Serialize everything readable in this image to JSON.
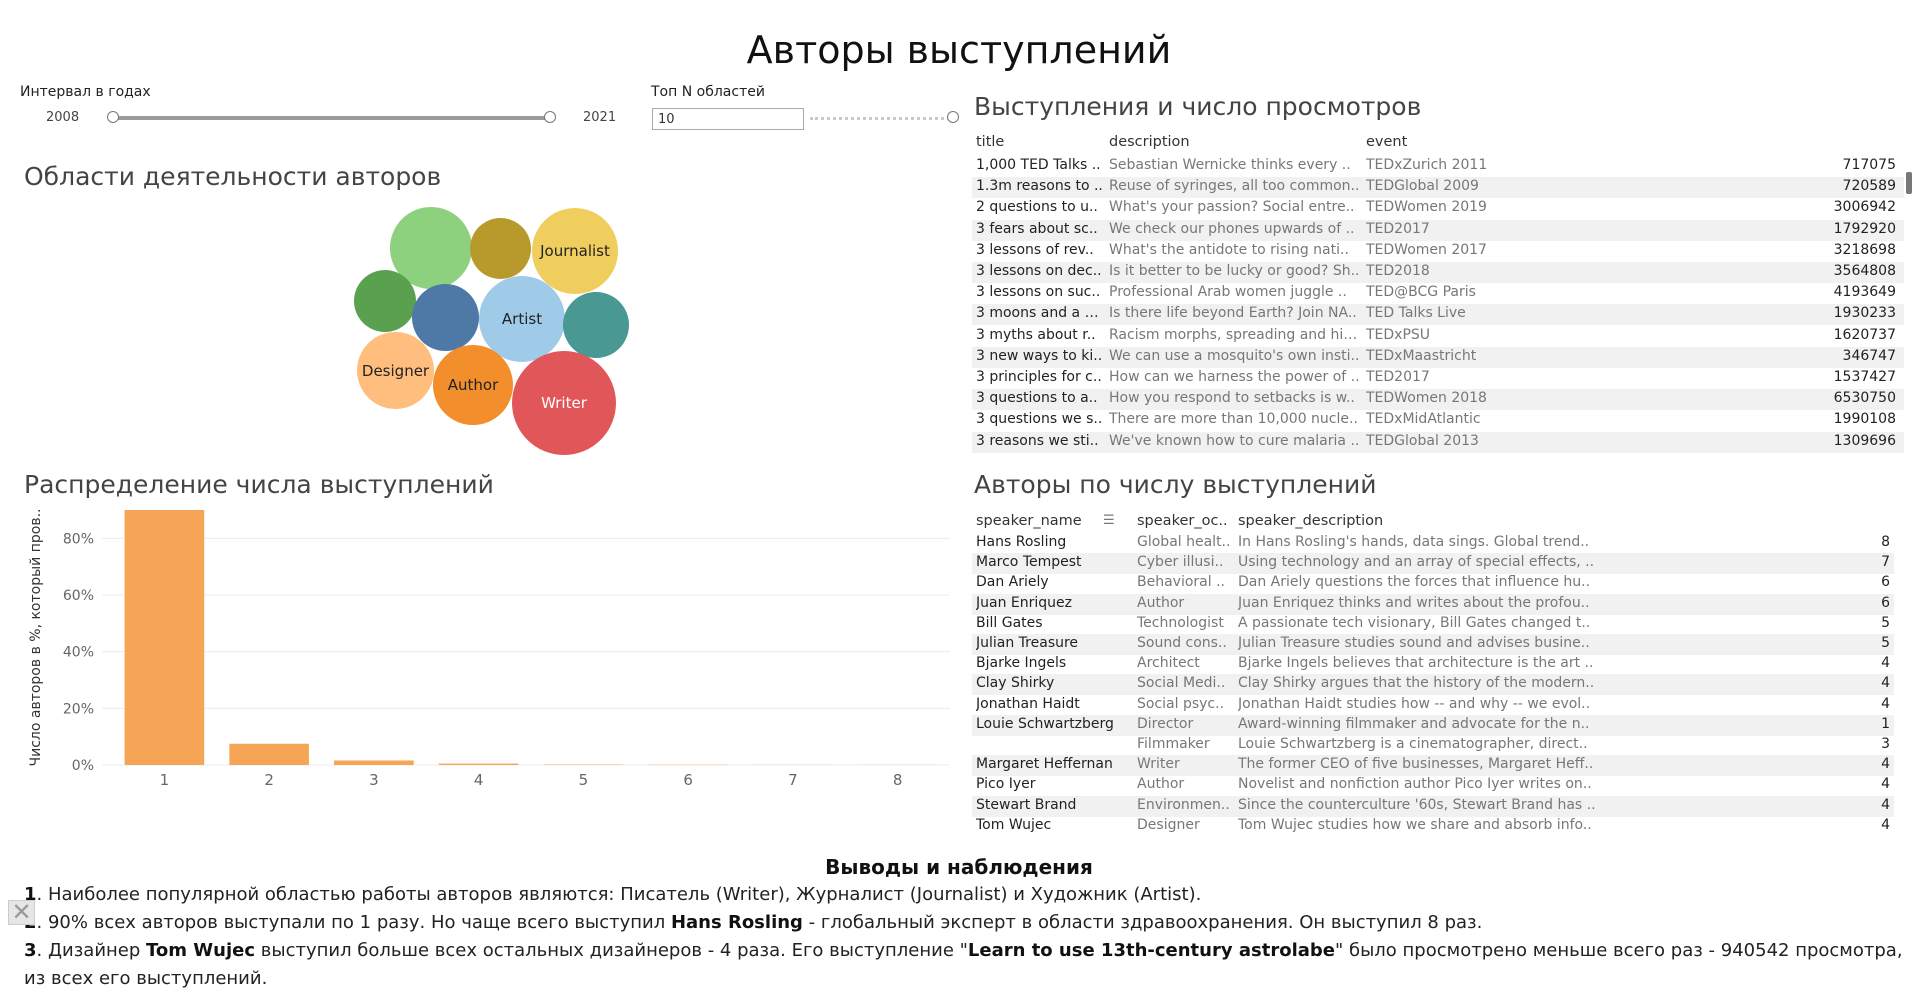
{
  "title": "Авторы выступлений",
  "controls": {
    "interval_label": "Интервал в годах",
    "year_from": "2008",
    "year_to": "2021",
    "topn_label": "Топ N областей",
    "topn_value": "10"
  },
  "bubbles": {
    "title": "Области деятельности авторов",
    "items": [
      {
        "label": "",
        "color": "#8dd17e"
      },
      {
        "label": "",
        "color": "#b89a2c"
      },
      {
        "label": "Journalist",
        "color": "#f0ce5e"
      },
      {
        "label": "",
        "color": "#59a14f"
      },
      {
        "label": "",
        "color": "#4e79a7"
      },
      {
        "label": "Artist",
        "color": "#a0cbe8"
      },
      {
        "label": "",
        "color": "#499894"
      },
      {
        "label": "Designer",
        "color": "#ffbe7d"
      },
      {
        "label": "Author",
        "color": "#f28e2b"
      },
      {
        "label": "Writer",
        "color": "#e15759"
      }
    ]
  },
  "talks": {
    "title": "Выступления и число просмотров",
    "headers": {
      "title": "title",
      "description": "description",
      "event": "event"
    },
    "rows": [
      {
        "title": "1,000 TED Talks ..",
        "description": "Sebastian Wernicke thinks every ..",
        "event": "TEDxZurich 2011",
        "views": "717075"
      },
      {
        "title": "1.3m reasons to ..",
        "description": "Reuse of syringes, all too common..",
        "event": "TEDGlobal 2009",
        "views": "720589"
      },
      {
        "title": "2 questions to u..",
        "description": "What's your passion? Social entre..",
        "event": "TEDWomen 2019",
        "views": "3006942"
      },
      {
        "title": "3 fears about sc..",
        "description": "We check our phones upwards of ..",
        "event": "TED2017",
        "views": "1792920"
      },
      {
        "title": "3 lessons of rev..",
        "description": "What's the antidote to rising nati..",
        "event": "TEDWomen 2017",
        "views": "3218698"
      },
      {
        "title": "3 lessons on dec..",
        "description": "Is it better to be lucky or good? Sh..",
        "event": "TED2018",
        "views": "3564808"
      },
      {
        "title": "3 lessons on suc..",
        "description": "Professional Arab women juggle ..",
        "event": "TED@BCG Paris",
        "views": "4193649"
      },
      {
        "title": "3 moons and a pl..",
        "description": "Is there life beyond Earth? Join NA..",
        "event": "TED Talks Live",
        "views": "1930233"
      },
      {
        "title": "3 myths about r..",
        "description": "Racism morphs, spreading and hid..",
        "event": "TEDxPSU",
        "views": "1620737"
      },
      {
        "title": "3 new ways to ki..",
        "description": "We can use a mosquito's own insti..",
        "event": "TEDxMaastricht",
        "views": "346747"
      },
      {
        "title": "3 principles for c..",
        "description": "How can we harness the power of ..",
        "event": "TED2017",
        "views": "1537427"
      },
      {
        "title": "3 questions to a..",
        "description": "How you respond to setbacks is w..",
        "event": "TEDWomen 2018",
        "views": "6530750"
      },
      {
        "title": "3 questions we s..",
        "description": "There are more than 10,000 nucle..",
        "event": "TEDxMidAtlantic",
        "views": "1990108"
      },
      {
        "title": "3 reasons we sti..",
        "description": "We've known how to cure malaria ..",
        "event": "TEDGlobal 2013",
        "views": "1309696"
      }
    ]
  },
  "authors": {
    "title": "Авторы по числу выступлений",
    "headers": {
      "name": "speaker_name",
      "occupation": "speaker_oc..",
      "description": "speaker_description"
    },
    "rows": [
      {
        "name": "Hans Rosling",
        "occupation": "Global healt..",
        "description": "In Hans Rosling's hands, data sings. Global trend..",
        "count": "8"
      },
      {
        "name": "Marco Tempest",
        "occupation": "Cyber illusi..",
        "description": "Using technology and an array of special effects, ..",
        "count": "7"
      },
      {
        "name": "Dan Ariely",
        "occupation": "Behavioral ..",
        "description": "Dan Ariely questions the forces that influence hu..",
        "count": "6"
      },
      {
        "name": "Juan Enriquez",
        "occupation": "Author",
        "description": "Juan Enriquez thinks and writes about the profou..",
        "count": "6"
      },
      {
        "name": "Bill Gates",
        "occupation": "Technologist",
        "description": "A passionate tech visionary, Bill Gates changed t..",
        "count": "5"
      },
      {
        "name": "Julian Treasure",
        "occupation": "Sound cons..",
        "description": "Julian Treasure studies sound and advises busine..",
        "count": "5"
      },
      {
        "name": "Bjarke Ingels",
        "occupation": "Architect",
        "description": "Bjarke Ingels believes that architecture is the art ..",
        "count": "4"
      },
      {
        "name": "Clay Shirky",
        "occupation": "Social Medi..",
        "description": "Clay Shirky argues that the history of the modern..",
        "count": "4"
      },
      {
        "name": "Jonathan Haidt",
        "occupation": "Social psyc..",
        "description": "Jonathan Haidt studies how -- and why -- we evol..",
        "count": "4"
      },
      {
        "name": "Louie Schwartzberg",
        "occupation": "Director",
        "description": "Award-winning filmmaker and advocate for the n..",
        "count": "1"
      },
      {
        "name": "",
        "occupation": "Filmmaker",
        "description": "Louie Schwartzberg is a cinematographer, direct..",
        "count": "3"
      },
      {
        "name": "Margaret Heffernan",
        "occupation": "Writer",
        "description": "The former CEO of five businesses, Margaret Heff..",
        "count": "4"
      },
      {
        "name": "Pico Iyer",
        "occupation": "Author",
        "description": "Novelist and nonfiction author Pico Iyer writes on..",
        "count": "4"
      },
      {
        "name": "Stewart Brand",
        "occupation": "Environmen..",
        "description": "Since the counterculture '60s, Stewart Brand has ..",
        "count": "4"
      },
      {
        "name": "Tom Wujec",
        "occupation": "Designer",
        "description": "Tom Wujec studies how we share and absorb info..",
        "count": "4"
      }
    ]
  },
  "chart_data": {
    "type": "bar",
    "title": "Распределение числа выступлений",
    "ylabel": "Число авторов в %, который пров..",
    "xlabel": "",
    "categories": [
      "1",
      "2",
      "3",
      "4",
      "5",
      "6",
      "7",
      "8"
    ],
    "values": [
      90,
      7.5,
      1.6,
      0.5,
      0.15,
      0.1,
      0.05,
      0.05
    ],
    "ylim": [
      0,
      90
    ],
    "yticks": [
      "0%",
      "20%",
      "40%",
      "60%",
      "80%"
    ],
    "ytick_values": [
      0,
      20,
      40,
      60,
      80
    ],
    "color": "#f5a555",
    "grid": true
  },
  "conclusions": {
    "title": "Выводы и наблюдения",
    "l1_num": "1",
    "l1_text": ". Наиболее популярной областью работы авторов являются: Писатель (Writer), Журналист (Journalist) и Художник (Artist).",
    "l2_num": "2",
    "l2_a": ". 90% всех авторов выступали по 1 разу. Но чаще всего выступил ",
    "l2_b": "Hans Rosling",
    "l2_c": " - глобальный эксперт в области здравоохранения. Он выступил  8 раз.",
    "l3_num": "3",
    "l3_a": ". Дизайнер ",
    "l3_b": "Tom Wujec",
    "l3_c": " выступил больше всех остальных дизайнеров - 4 раза. Его выступление \"",
    "l3_d": "Learn to use 13th-century astrolabe",
    "l3_e": "\" было просмотрено меньше всего раз - 940542 просмотра,",
    "l4": "из всех его выступлений."
  }
}
